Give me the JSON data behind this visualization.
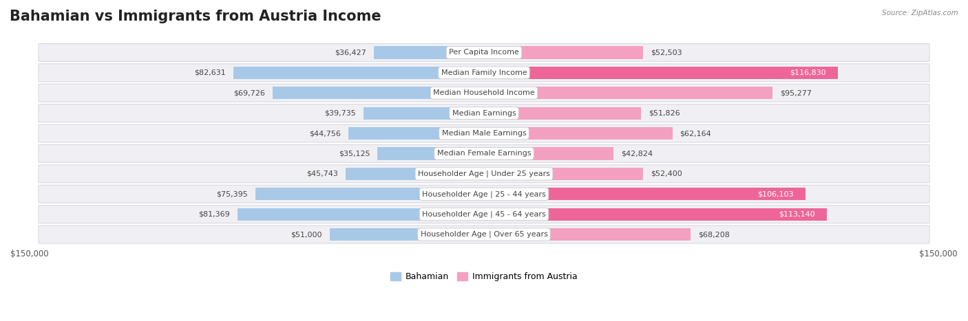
{
  "title": "Bahamian vs Immigrants from Austria Income",
  "source": "Source: ZipAtlas.com",
  "categories": [
    "Per Capita Income",
    "Median Family Income",
    "Median Household Income",
    "Median Earnings",
    "Median Male Earnings",
    "Median Female Earnings",
    "Householder Age | Under 25 years",
    "Householder Age | 25 - 44 years",
    "Householder Age | 45 - 64 years",
    "Householder Age | Over 65 years"
  ],
  "bahamian": [
    36427,
    82631,
    69726,
    39735,
    44756,
    35125,
    45743,
    75395,
    81369,
    51000
  ],
  "austria": [
    52503,
    116830,
    95277,
    51826,
    62164,
    42824,
    52400,
    106103,
    113140,
    68208
  ],
  "max_val": 150000,
  "color_bahamian_light": "#a8c8e8",
  "color_bahamian_dark": "#6699cc",
  "color_austria_light": "#f4a0c0",
  "color_austria_dark": "#ee6699",
  "white_label_threshold": 100000,
  "bar_height": 0.62,
  "row_bg_color": "#f0f0f4",
  "row_border_color": "#d8d8e0",
  "legend_bahamian": "Bahamian",
  "legend_austria": "Immigrants from Austria",
  "title_fontsize": 15,
  "label_fontsize": 8.0,
  "category_fontsize": 8.0,
  "legend_fontsize": 9,
  "axis_label_fontsize": 8.5
}
